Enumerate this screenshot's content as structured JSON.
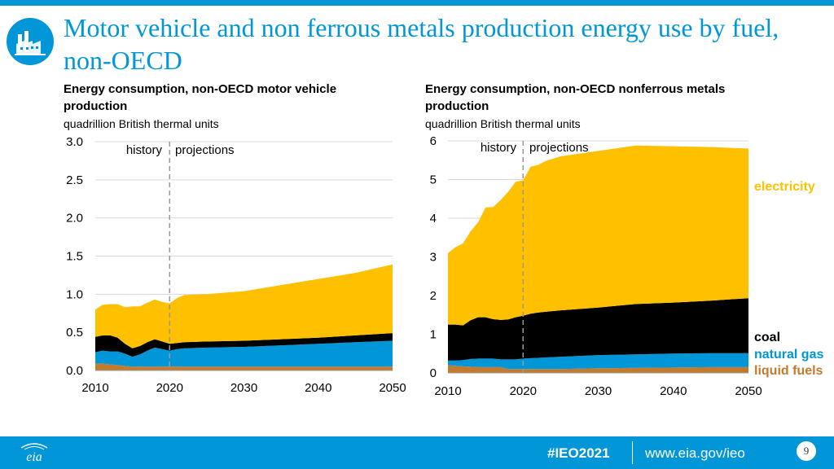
{
  "slide": {
    "title": "Motor vehicle and non ferrous metals production energy use by fuel, non-OECD",
    "page_number": "9"
  },
  "footer": {
    "hashtag": "#IEO2021",
    "url": "www.eia.gov/ieo",
    "logo_text": "eia"
  },
  "colors": {
    "electricity": "#ffc000",
    "coal": "#000000",
    "natural_gas": "#0096d7",
    "liquid_fuels": "#c47a2c",
    "accent": "#0096d7"
  },
  "chart_data": [
    {
      "type": "area",
      "stacked": true,
      "title": "Energy consumption, non-OECD motor vehicle production",
      "subtitle": "quadrillion British thermal units",
      "xlim": [
        2010,
        2050
      ],
      "ylim": [
        0,
        3.0
      ],
      "xticks": [
        "2010",
        "2020",
        "2030",
        "2040",
        "2050"
      ],
      "yticks": [
        "0.0",
        "0.5",
        "1.0",
        "1.5",
        "2.0",
        "2.5",
        "3.0"
      ],
      "divider_year": 2020,
      "annotations": {
        "history": "history",
        "projections": "projections"
      },
      "x": [
        2010,
        2011,
        2012,
        2013,
        2014,
        2015,
        2016,
        2017,
        2018,
        2019,
        2020,
        2021,
        2022,
        2025,
        2030,
        2035,
        2040,
        2045,
        2050
      ],
      "series": [
        {
          "name": "liquid fuels",
          "values": [
            0.09,
            0.09,
            0.08,
            0.07,
            0.06,
            0.05,
            0.05,
            0.05,
            0.05,
            0.05,
            0.05,
            0.05,
            0.05,
            0.05,
            0.05,
            0.05,
            0.05,
            0.05,
            0.05
          ]
        },
        {
          "name": "natural gas",
          "values": [
            0.15,
            0.17,
            0.17,
            0.18,
            0.16,
            0.13,
            0.16,
            0.21,
            0.25,
            0.23,
            0.21,
            0.23,
            0.24,
            0.25,
            0.26,
            0.28,
            0.3,
            0.32,
            0.34
          ]
        },
        {
          "name": "coal",
          "values": [
            0.2,
            0.2,
            0.21,
            0.18,
            0.13,
            0.11,
            0.11,
            0.11,
            0.11,
            0.1,
            0.09,
            0.08,
            0.08,
            0.08,
            0.08,
            0.08,
            0.08,
            0.09,
            0.1
          ]
        },
        {
          "name": "electricity",
          "values": [
            0.36,
            0.4,
            0.41,
            0.44,
            0.48,
            0.55,
            0.52,
            0.52,
            0.52,
            0.52,
            0.53,
            0.59,
            0.62,
            0.62,
            0.65,
            0.71,
            0.77,
            0.82,
            0.9
          ]
        }
      ]
    },
    {
      "type": "area",
      "stacked": true,
      "title": "Energy consumption, non-OECD nonferrous metals production",
      "subtitle": "quadrillion British thermal units",
      "xlim": [
        2010,
        2050
      ],
      "ylim": [
        0,
        6
      ],
      "xticks": [
        "2010",
        "2020",
        "2030",
        "2040",
        "2050"
      ],
      "yticks": [
        "0",
        "1",
        "2",
        "3",
        "4",
        "5",
        "6"
      ],
      "divider_year": 2020,
      "annotations": {
        "history": "history",
        "projections": "projections"
      },
      "x": [
        2010,
        2011,
        2012,
        2013,
        2014,
        2015,
        2016,
        2017,
        2018,
        2019,
        2020,
        2021,
        2022,
        2023,
        2025,
        2030,
        2035,
        2040,
        2045,
        2050
      ],
      "series": [
        {
          "name": "liquid fuels",
          "values": [
            0.2,
            0.18,
            0.17,
            0.16,
            0.15,
            0.15,
            0.15,
            0.15,
            0.1,
            0.1,
            0.1,
            0.1,
            0.1,
            0.1,
            0.1,
            0.12,
            0.13,
            0.14,
            0.15,
            0.15
          ]
        },
        {
          "name": "natural gas",
          "values": [
            0.12,
            0.14,
            0.16,
            0.2,
            0.22,
            0.22,
            0.22,
            0.2,
            0.25,
            0.25,
            0.27,
            0.28,
            0.29,
            0.3,
            0.32,
            0.34,
            0.35,
            0.36,
            0.36,
            0.36
          ]
        },
        {
          "name": "coal",
          "values": [
            0.93,
            0.93,
            0.9,
            1.0,
            1.07,
            1.07,
            1.02,
            1.02,
            1.03,
            1.09,
            1.11,
            1.15,
            1.17,
            1.18,
            1.2,
            1.23,
            1.3,
            1.32,
            1.36,
            1.42
          ]
        },
        {
          "name": "electricity",
          "values": [
            1.85,
            2.0,
            2.12,
            2.3,
            2.45,
            2.84,
            2.9,
            3.1,
            3.3,
            3.5,
            3.5,
            3.8,
            3.82,
            3.9,
            3.98,
            4.05,
            4.1,
            4.04,
            3.97,
            3.87
          ]
        }
      ],
      "legend": [
        "electricity",
        "coal",
        "natural gas",
        "liquid fuels"
      ]
    }
  ]
}
